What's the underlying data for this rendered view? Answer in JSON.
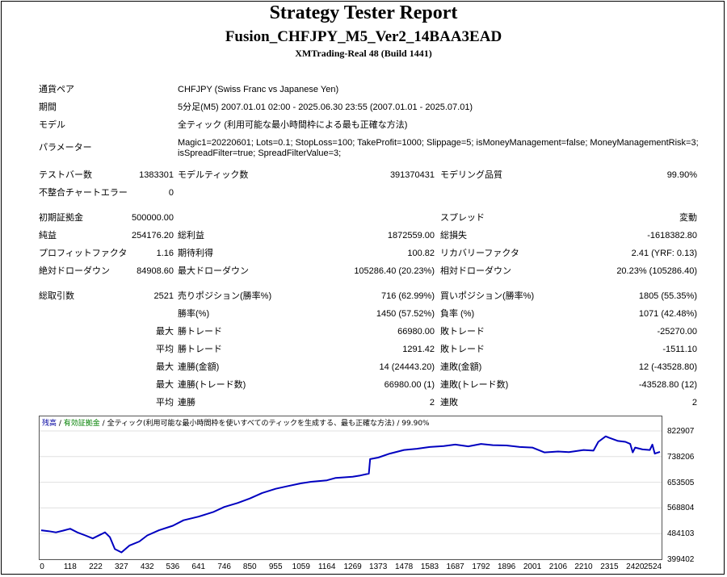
{
  "header": {
    "title": "Strategy Tester Report",
    "subtitle": "Fusion_CHFJPY_M5_Ver2_14BAA3EAD",
    "server": "XMTrading-Real 48 (Build 1441)"
  },
  "settings": {
    "symbol_label": "通貨ペア",
    "symbol_value": "CHFJPY (Swiss Franc vs Japanese Yen)",
    "period_label": "期間",
    "period_value": "5分足(M5) 2007.01.01 02:00 - 2025.06.30 23:55 (2007.01.01 - 2025.07.01)",
    "model_label": "モデル",
    "model_value": "全ティック (利用可能な最小時間枠による最も正確な方法)",
    "params_label": "パラメーター",
    "params_line1": "Magic1=20220601; Lots=0.1; StopLoss=100; TakeProfit=1000; Slippage=5; isMoneyManagement=false; MoneyManagementRisk=3;",
    "params_line2": "isSpreadFilter=true; SpreadFilterValue=3;"
  },
  "stats": {
    "bars_label": "テストバー数",
    "bars_value": "1383301",
    "ticks_label": "モデルティック数",
    "ticks_value": "391370431",
    "quality_label": "モデリング品質",
    "quality_value": "99.90%",
    "mismatch_label": "不整合チャートエラー",
    "mismatch_value": "0",
    "deposit_label": "初期証拠金",
    "deposit_value": "500000.00",
    "spread_label": "スプレッド",
    "spread_value": "変動",
    "net_label": "純益",
    "net_value": "254176.20",
    "gross_profit_label": "総利益",
    "gross_profit_value": "1872559.00",
    "gross_loss_label": "総損失",
    "gross_loss_value": "-1618382.80",
    "pf_label": "プロフィットファクタ",
    "pf_value": "1.16",
    "payoff_label": "期待利得",
    "payoff_value": "100.82",
    "rf_label": "リカバリーファクタ",
    "rf_value": "2.41 (YRF: 0.13)",
    "abs_dd_label": "絶対ドローダウン",
    "abs_dd_value": "84908.60",
    "max_dd_label": "最大ドローダウン",
    "max_dd_value": "105286.40 (20.23%)",
    "rel_dd_label": "相対ドローダウン",
    "rel_dd_value": "20.23% (105286.40)",
    "trades_label": "総取引数",
    "trades_value": "2521",
    "short_label": "売りポジション(勝率%)",
    "short_value": "716 (62.99%)",
    "long_label": "買いポジション(勝率%)",
    "long_value": "1805 (55.35%)",
    "winrate_label": "勝率(%)",
    "winrate_value": "1450 (57.52%)",
    "lossrate_label": "負率 (%)",
    "lossrate_value": "1071 (42.48%)",
    "max_prefix": "最大",
    "avg_prefix": "平均",
    "max_win_label": "勝トレード",
    "max_win_value": "66980.00",
    "max_loss_label": "敗トレード",
    "max_loss_value": "-25270.00",
    "avg_win_label": "勝トレード",
    "avg_win_value": "1291.42",
    "avg_loss_label": "敗トレード",
    "avg_loss_value": "-1511.10",
    "cons_win_amt_label": "連勝(金額)",
    "cons_win_amt_value": "14 (24443.20)",
    "cons_loss_amt_label": "連敗(金額)",
    "cons_loss_amt_value": "12 (-43528.80)",
    "cons_win_cnt_label": "連勝(トレード数)",
    "cons_win_cnt_value": "66980.00 (1)",
    "cons_loss_cnt_label": "連敗(トレード数)",
    "cons_loss_cnt_value": "-43528.80 (12)",
    "avg_cons_win_label": "連勝",
    "avg_cons_win_value": "2",
    "avg_cons_loss_label": "連敗",
    "avg_cons_loss_value": "2"
  },
  "chart_legend": {
    "balance": "残高",
    "sep1": " / ",
    "margin": "有効証拠金",
    "sep2": " / ",
    "desc": "全ティック(利用可能な最小時間枠を使いすべてのティックを生成する、最も正確な方法)",
    "sep3": " / ",
    "quality": "99.90%"
  },
  "chart_data": {
    "type": "line",
    "y_ticks": [
      "822907",
      "738206",
      "653505",
      "568804",
      "484103",
      "399402"
    ],
    "x_ticks": [
      "0",
      "118",
      "222",
      "327",
      "432",
      "536",
      "641",
      "746",
      "850",
      "955",
      "1059",
      "1164",
      "1269",
      "1373",
      "1478",
      "1583",
      "1687",
      "1792",
      "1896",
      "2001",
      "2106",
      "2210",
      "2315",
      "2420",
      "2524"
    ],
    "ylim": [
      399402,
      822907
    ],
    "xlim": [
      0,
      2521
    ],
    "series": [
      {
        "color": "#0000c0",
        "x": [
          0,
          30,
          60,
          90,
          118,
          150,
          180,
          210,
          240,
          260,
          280,
          300,
          327,
          360,
          400,
          432,
          480,
          536,
          580,
          641,
          700,
          746,
          800,
          850,
          900,
          955,
          1000,
          1059,
          1100,
          1164,
          1200,
          1269,
          1300,
          1335,
          1340,
          1373,
          1420,
          1478,
          1530,
          1583,
          1640,
          1687,
          1740,
          1792,
          1840,
          1896,
          1950,
          2001,
          2050,
          2106,
          2150,
          2210,
          2250,
          2270,
          2300,
          2315,
          2350,
          2380,
          2400,
          2410,
          2420,
          2450,
          2480,
          2490,
          2500,
          2521
        ],
        "y": [
          495000,
          492000,
          488000,
          494000,
          500000,
          487000,
          478000,
          468000,
          480000,
          488000,
          472000,
          433000,
          422000,
          445000,
          458000,
          478000,
          495000,
          510000,
          528000,
          540000,
          555000,
          572000,
          585000,
          600000,
          618000,
          632000,
          640000,
          650000,
          655000,
          660000,
          668000,
          672000,
          676000,
          682000,
          730000,
          735000,
          748000,
          760000,
          764000,
          770000,
          773000,
          778000,
          772000,
          780000,
          776000,
          775000,
          770000,
          768000,
          752000,
          755000,
          753000,
          760000,
          758000,
          787000,
          805000,
          800000,
          790000,
          787000,
          780000,
          752000,
          768000,
          762000,
          760000,
          778000,
          748000,
          754000
        ]
      }
    ]
  }
}
